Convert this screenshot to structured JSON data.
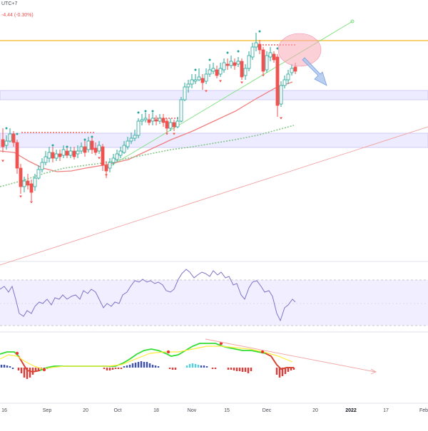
{
  "header": {
    "timezone": "UTC+7",
    "price_change": "-4.44 (-0.30%)"
  },
  "colors": {
    "up": "#26a69a",
    "down": "#ef5350",
    "resistance": "#f6c343",
    "zone_fill": "#ecebff",
    "zone_border": "#c9c4f3",
    "rsi": "#7e74c9",
    "rsi_band": "#f0eeff",
    "ma_red": "#f08080",
    "ma_green": "#86c68a",
    "trend_green": "#7be07b",
    "trend_red": "#f3a0a0",
    "arrow_blue": "#a9c4ee",
    "ellipse_pink": "#f7aab5",
    "macd_green": "#33dd33",
    "macd_red": "#e53935",
    "macd_yellow": "#ffeb3b",
    "hist_red": "#e53935",
    "hist_blue": "#3f51b5",
    "hist_cyan": "#4dd0e1"
  },
  "chart_data": {
    "type": "candlestick",
    "time_axis": {
      "labels": [
        "16",
        "Sep",
        "20",
        "Oct",
        "18",
        "Nov",
        "15",
        "Dec",
        "20",
        "2022",
        "17",
        "Feb"
      ]
    },
    "price_pane": {
      "annotations": [
        "horizontal resistance line",
        "support zone",
        "rising trendline",
        "downward arrow",
        "highlight ellipse"
      ]
    },
    "rsi_pane": {
      "series": "RSI",
      "band": "upper and lower dashed levels"
    },
    "macd_pane": {
      "series": [
        "MACD",
        "Signal",
        "Histogram"
      ]
    }
  }
}
